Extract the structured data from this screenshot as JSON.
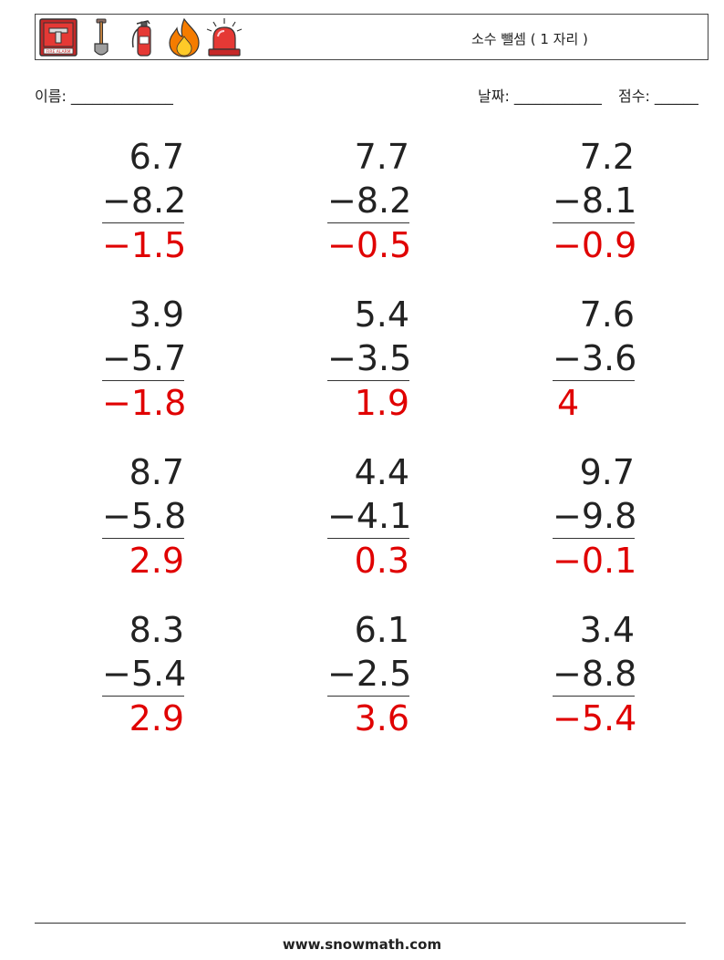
{
  "header": {
    "title": "소수 뺄셈 ( 1 자리 )",
    "icons": [
      "fire-alarm-icon",
      "shovel-icon",
      "fire-extinguisher-icon",
      "flame-icon",
      "siren-icon"
    ],
    "alarm_box_text": "FIRE ALARM"
  },
  "meta": {
    "name_label": "이름: ______________",
    "date_label": "날짜: ____________",
    "score_label": "점수: ______"
  },
  "colors": {
    "answer": "#e00000",
    "text": "#222222"
  },
  "problems": [
    {
      "top": "6.7",
      "sub": "−8.2",
      "ans": "−1.5"
    },
    {
      "top": "7.7",
      "sub": "−8.2",
      "ans": "−0.5"
    },
    {
      "top": "7.2",
      "sub": "−8.1",
      "ans": "−0.9"
    },
    {
      "top": "3.9",
      "sub": "−5.7",
      "ans": "−1.8"
    },
    {
      "top": "5.4",
      "sub": "−3.5",
      "ans": "1.9"
    },
    {
      "top": "7.6",
      "sub": "−3.6",
      "ans": "4"
    },
    {
      "top": "8.7",
      "sub": "−5.8",
      "ans": "2.9"
    },
    {
      "top": "4.4",
      "sub": "−4.1",
      "ans": "0.3"
    },
    {
      "top": "9.7",
      "sub": "−9.8",
      "ans": "−0.1"
    },
    {
      "top": "8.3",
      "sub": "−5.4",
      "ans": "2.9"
    },
    {
      "top": "6.1",
      "sub": "−2.5",
      "ans": "3.6"
    },
    {
      "top": "3.4",
      "sub": "−8.8",
      "ans": "−5.4"
    }
  ],
  "footer": {
    "site": "www.snowmath.com"
  }
}
